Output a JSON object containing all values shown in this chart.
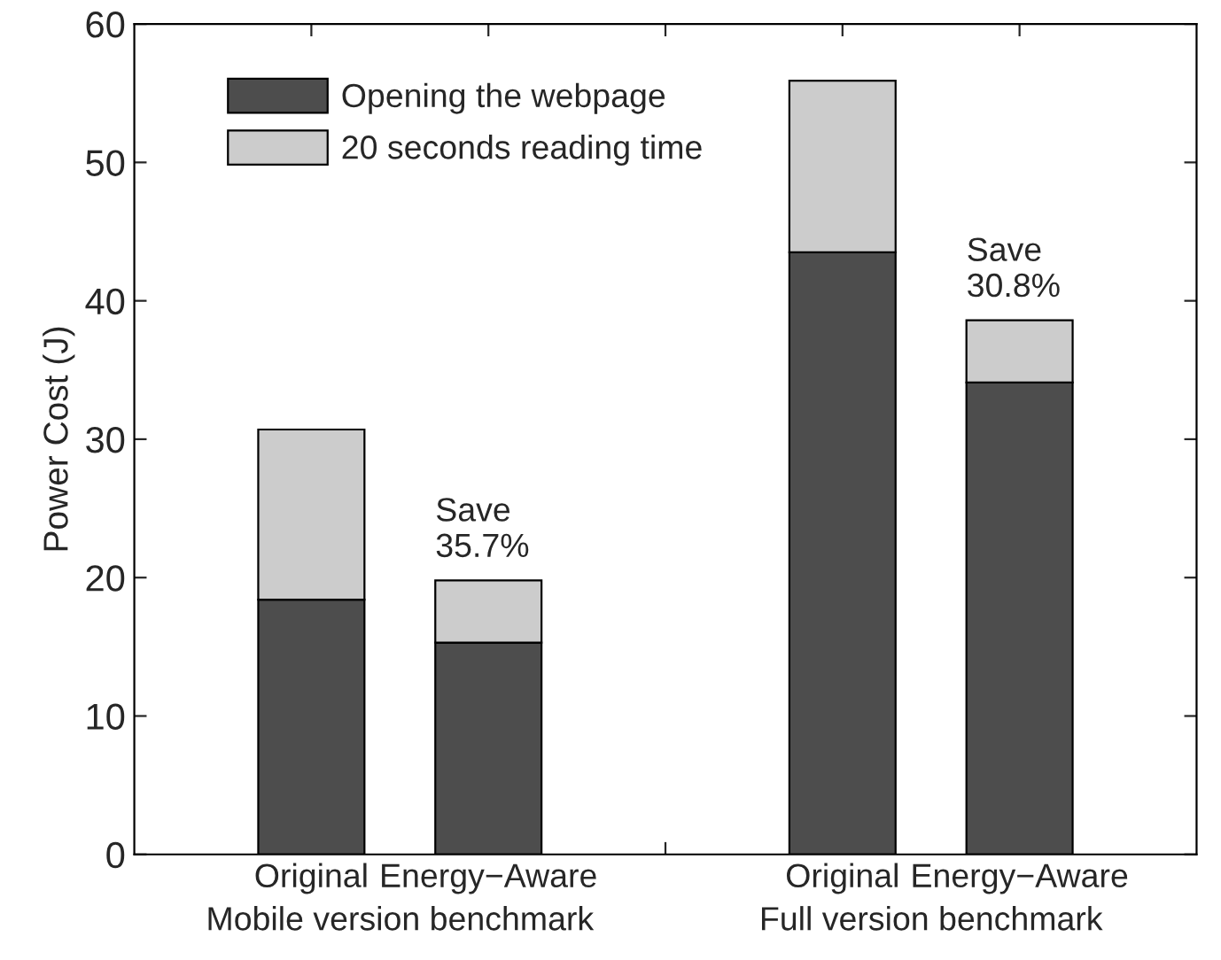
{
  "chart_data": {
    "type": "bar",
    "stacked": true,
    "ylabel": "Power Cost (J)",
    "categories": [
      "Original",
      "Energy−Aware",
      null,
      "Original",
      "Energy−Aware"
    ],
    "series": [
      {
        "name": "Opening the webpage",
        "color": "#4d4d4d",
        "values": [
          18.4,
          15.3,
          null,
          43.5,
          34.1
        ]
      },
      {
        "name": "20 seconds reading time",
        "color": "#cccccc",
        "values": [
          12.3,
          4.5,
          null,
          12.4,
          4.5
        ]
      }
    ],
    "ylim": [
      0,
      60
    ],
    "yticks": [
      0,
      10,
      20,
      30,
      40,
      50,
      60
    ],
    "grid": false,
    "legend": "top left",
    "annotations": [
      "Mobile version benchmark",
      "Full version benchmark",
      "Save\n35.7%",
      "Save\n30.8%"
    ]
  }
}
